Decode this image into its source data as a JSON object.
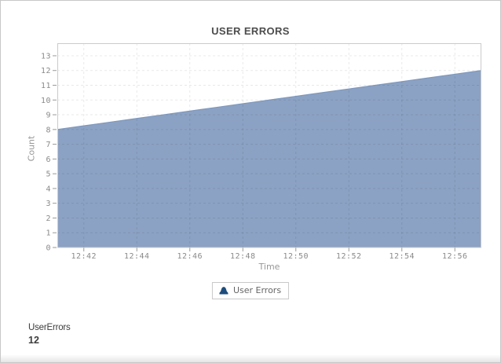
{
  "page": {
    "background": "#ffffff",
    "border_color": "#c8c8c8"
  },
  "chart_data": {
    "type": "area",
    "title": "USER ERRORS",
    "xlabel": "Time",
    "ylabel": "Count",
    "grid": true,
    "legend_position": "bottom",
    "x_range_minutes": [
      0,
      16
    ],
    "ylim": [
      0,
      13.85
    ],
    "y_ticks": [
      0,
      1,
      2,
      3,
      4,
      5,
      6,
      7,
      8,
      9,
      10,
      11,
      12,
      13
    ],
    "x_ticks": [
      {
        "label": "12:42",
        "min": 1
      },
      {
        "label": "12:44",
        "min": 3
      },
      {
        "label": "12:46",
        "min": 5
      },
      {
        "label": "12:48",
        "min": 7
      },
      {
        "label": "12:50",
        "min": 9
      },
      {
        "label": "12:52",
        "min": 11
      },
      {
        "label": "12:54",
        "min": 13
      },
      {
        "label": "12:56",
        "min": 15
      }
    ],
    "series": [
      {
        "name": "User Errors",
        "color": "#8ca2c4",
        "edge_color": "#7e97bc",
        "marker_color": "#1d4d7c",
        "points": [
          {
            "time": "12:41",
            "min": 0,
            "value": 8.0
          },
          {
            "time": "12:42",
            "min": 1,
            "value": 8.25
          },
          {
            "time": "12:43",
            "min": 2,
            "value": 8.5
          },
          {
            "time": "12:44",
            "min": 3,
            "value": 8.75
          },
          {
            "time": "12:45",
            "min": 4,
            "value": 9.0
          },
          {
            "time": "12:46",
            "min": 5,
            "value": 9.25
          },
          {
            "time": "12:47",
            "min": 6,
            "value": 9.5
          },
          {
            "time": "12:48",
            "min": 7,
            "value": 9.75
          },
          {
            "time": "12:49",
            "min": 8,
            "value": 10.0
          },
          {
            "time": "12:50",
            "min": 9,
            "value": 10.25
          },
          {
            "time": "12:51",
            "min": 10,
            "value": 10.5
          },
          {
            "time": "12:52",
            "min": 11,
            "value": 10.75
          },
          {
            "time": "12:53",
            "min": 12,
            "value": 11.0
          },
          {
            "time": "12:54",
            "min": 13,
            "value": 11.25
          },
          {
            "time": "12:55",
            "min": 14,
            "value": 11.5
          },
          {
            "time": "12:56",
            "min": 15,
            "value": 11.75
          },
          {
            "time": "12:57",
            "min": 16,
            "value": 12.0
          }
        ]
      }
    ]
  },
  "legend": {
    "items": [
      {
        "label": "User Errors",
        "icon": "area-dome-icon",
        "color": "#1d4d7c"
      }
    ]
  },
  "summary": {
    "label": "UserErrors",
    "value": "12"
  }
}
